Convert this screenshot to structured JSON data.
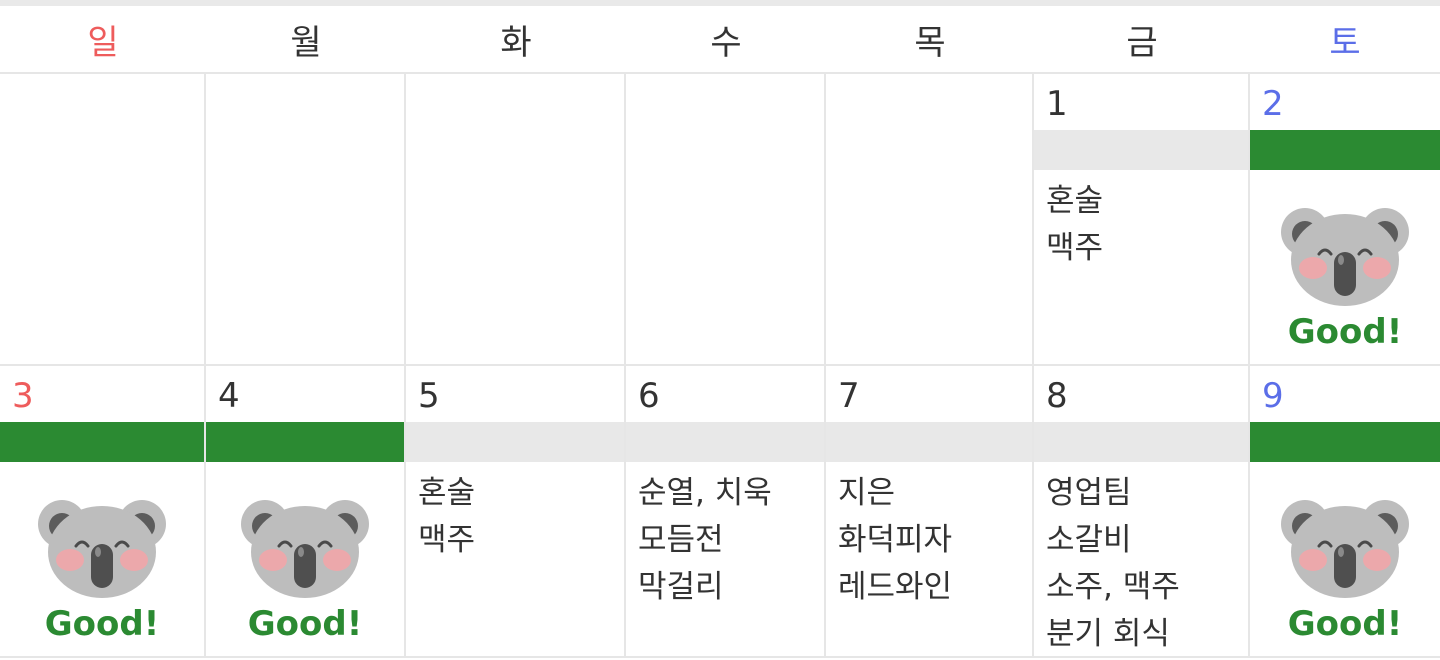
{
  "weekdays": [
    {
      "label": "일",
      "color": "#ee5c5c"
    },
    {
      "label": "월",
      "color": "#333333"
    },
    {
      "label": "화",
      "color": "#333333"
    },
    {
      "label": "수",
      "color": "#333333"
    },
    {
      "label": "목",
      "color": "#333333"
    },
    {
      "label": "금",
      "color": "#333333"
    },
    {
      "label": "토",
      "color": "#5b6ee8"
    }
  ],
  "colors": {
    "good_green": "#2b8a32",
    "band_gray": "#e8e8e8",
    "sunday": "#ee5c5c",
    "saturday": "#5b6ee8",
    "grid": "#e6e6e6"
  },
  "stamp": {
    "icon": "koala-icon",
    "label": "Good!"
  },
  "weeks": [
    {
      "days": [
        {
          "day": ""
        },
        {
          "day": ""
        },
        {
          "day": ""
        },
        {
          "day": ""
        },
        {
          "day": ""
        },
        {
          "day": "1",
          "status": "gray",
          "events": [
            "혼술",
            "맥주"
          ]
        },
        {
          "day": "2",
          "status": "green",
          "good": true
        }
      ]
    },
    {
      "days": [
        {
          "day": "3",
          "status": "green",
          "good": true
        },
        {
          "day": "4",
          "status": "green",
          "good": true
        },
        {
          "day": "5",
          "status": "gray",
          "events": [
            "혼술",
            "맥주"
          ]
        },
        {
          "day": "6",
          "status": "gray",
          "events": [
            "순열, 치욱",
            "모듬전",
            "막걸리"
          ]
        },
        {
          "day": "7",
          "status": "gray",
          "events": [
            "지은",
            "화덕피자",
            "레드와인"
          ]
        },
        {
          "day": "8",
          "status": "gray",
          "events": [
            "영업팀",
            "소갈비",
            "소주, 맥주",
            "분기 회식"
          ]
        },
        {
          "day": "9",
          "status": "green",
          "good": true
        }
      ]
    }
  ]
}
